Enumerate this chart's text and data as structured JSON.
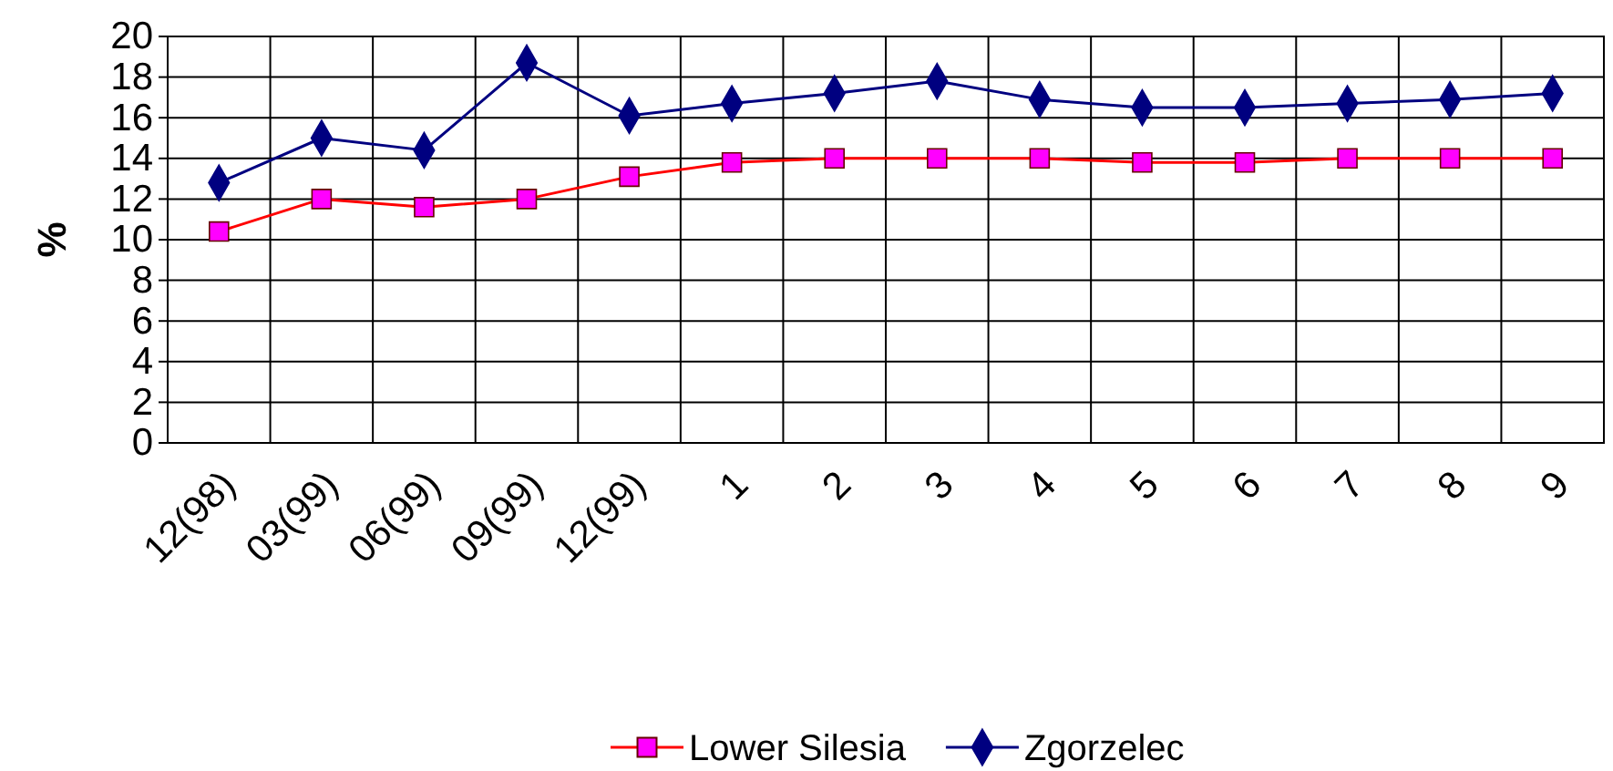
{
  "chart_data": {
    "type": "line",
    "ylabel": "%",
    "categories": [
      "12(98)",
      "03(99)",
      "06(99)",
      "09(99)",
      "12(99)",
      "1",
      "2",
      "3",
      "4",
      "5",
      "6",
      "7",
      "8",
      "9"
    ],
    "series": [
      {
        "name": "Lower Silesia",
        "color": "#ff0000",
        "marker": "square",
        "values": [
          10.4,
          12,
          11.6,
          12,
          13.1,
          13.8,
          14,
          14,
          14,
          13.8,
          13.8,
          14,
          14,
          14
        ]
      },
      {
        "name": "Zgorzelec",
        "color": "#000080",
        "marker": "diamond",
        "values": [
          12.8,
          15,
          14.4,
          18.7,
          16.1,
          16.7,
          17.2,
          17.8,
          16.9,
          16.5,
          16.5,
          16.7,
          16.9,
          17.2
        ]
      }
    ],
    "ylim": [
      0,
      20
    ],
    "yticks": [
      0,
      2,
      4,
      6,
      8,
      10,
      12,
      14,
      16,
      18,
      20
    ],
    "grid": true,
    "legend": "bottom",
    "line_style": "solid"
  }
}
